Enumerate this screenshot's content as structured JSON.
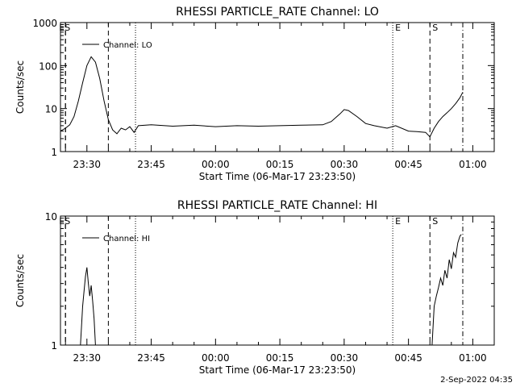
{
  "footer": {
    "date": "2-Sep-2022 04:35"
  },
  "chart_data": [
    {
      "type": "line",
      "title": "RHESSI PARTICLE_RATE Channel: LO",
      "xlabel": "Start Time (06-Mar-17 23:23:50)",
      "ylabel": "Counts/sec",
      "x_unit": "time (HH:MM)",
      "xlim": [
        "23:23:50",
        "01:05:00"
      ],
      "y_scale": "log",
      "ylim": [
        1,
        1000
      ],
      "yticks": [
        "1",
        "10",
        "100",
        "1000"
      ],
      "xticks": [
        "23:30",
        "23:45",
        "00:00",
        "00:15",
        "00:30",
        "00:45",
        "01:00"
      ],
      "legend": {
        "placement": "top-left",
        "entries": [
          "Channel: LO"
        ]
      },
      "markers": [
        {
          "time": "23:25:00",
          "style": "dashed",
          "label": "E"
        },
        {
          "time": "23:25:00",
          "style": "dashed",
          "label": "S"
        },
        {
          "time": "23:35:00",
          "style": "dashed",
          "label": ""
        },
        {
          "time": "23:41:20",
          "style": "dotted",
          "label": ""
        },
        {
          "time": "00:41:20",
          "style": "dotted",
          "label": "E"
        },
        {
          "time": "00:50:00",
          "style": "dashed",
          "label": "S"
        },
        {
          "time": "00:57:40",
          "style": "dashdot",
          "label": ""
        }
      ],
      "series": [
        {
          "x": [
            "23:23:50",
            "23:25:00",
            "23:26:00",
            "23:27:00",
            "23:28:00",
            "23:29:00",
            "23:30:00",
            "23:31:00",
            "23:32:00",
            "23:33:00",
            "23:34:00",
            "23:35:00",
            "23:36:00",
            "23:37:00",
            "23:38:00",
            "23:39:00",
            "23:40:00",
            "23:41:00",
            "23:42:00",
            "23:45:00",
            "23:50:00",
            "23:55:00",
            "00:00:00",
            "00:05:00",
            "00:10:00",
            "00:15:00",
            "00:20:00",
            "00:25:00",
            "00:27:00",
            "00:29:00",
            "00:30:00",
            "00:31:00",
            "00:33:00",
            "00:35:00",
            "00:37:00",
            "00:40:00",
            "00:42:00",
            "00:45:00",
            "00:47:00",
            "00:49:00",
            "00:50:00",
            "00:51:00",
            "00:52:00",
            "00:53:00",
            "00:54:00",
            "00:55:00",
            "00:56:00",
            "00:57:00",
            "00:57:40"
          ],
          "y": [
            3,
            3.5,
            4.2,
            6.5,
            15,
            40,
            100,
            160,
            120,
            50,
            15,
            5.5,
            3.2,
            2.6,
            3.5,
            3.2,
            3.8,
            2.8,
            4,
            4.2,
            3.9,
            4.1,
            3.8,
            4,
            3.9,
            4,
            4.1,
            4.2,
            5,
            7.5,
            9.5,
            9,
            6.5,
            4.5,
            4,
            3.5,
            4,
            3,
            2.9,
            2.8,
            2.2,
            3.5,
            5,
            6.5,
            8,
            10,
            13,
            18,
            24
          ]
        }
      ]
    },
    {
      "type": "line",
      "title": "RHESSI PARTICLE_RATE Channel: HI",
      "xlabel": "Start Time (06-Mar-17 23:23:50)",
      "ylabel": "Counts/sec",
      "x_unit": "time (HH:MM)",
      "xlim": [
        "23:23:50",
        "01:05:00"
      ],
      "y_scale": "log",
      "ylim": [
        1,
        10
      ],
      "yticks": [
        "1",
        "10"
      ],
      "xticks": [
        "23:30",
        "23:45",
        "00:00",
        "00:15",
        "00:30",
        "00:45",
        "01:00"
      ],
      "legend": {
        "placement": "top-left",
        "entries": [
          "Channel: HI"
        ]
      },
      "markers": [
        {
          "time": "23:25:00",
          "style": "dashed",
          "label": "E"
        },
        {
          "time": "23:25:00",
          "style": "dashed",
          "label": "S"
        },
        {
          "time": "23:35:00",
          "style": "dashed",
          "label": ""
        },
        {
          "time": "23:41:20",
          "style": "dotted",
          "label": ""
        },
        {
          "time": "00:41:20",
          "style": "dotted",
          "label": "E"
        },
        {
          "time": "00:50:00",
          "style": "dashed",
          "label": "S"
        },
        {
          "time": "00:57:40",
          "style": "dashdot",
          "label": ""
        }
      ],
      "series": [
        {
          "segments": [
            {
              "x": [
                "23:28:30",
                "23:29:00",
                "23:29:20",
                "23:29:40",
                "23:30:00",
                "23:30:20",
                "23:30:40",
                "23:31:00",
                "23:31:20",
                "23:31:40",
                "23:32:00"
              ],
              "y": [
                1,
                2,
                2.6,
                3.4,
                4,
                3,
                2.4,
                2.9,
                2.2,
                1.6,
                1
              ]
            },
            {
              "x": [
                "00:50:30",
                "00:51:00",
                "00:51:30",
                "00:52:00",
                "00:52:30",
                "00:53:00",
                "00:53:30",
                "00:54:00",
                "00:54:30",
                "00:55:00",
                "00:55:30",
                "00:56:00",
                "00:56:30",
                "00:57:00",
                "00:57:20"
              ],
              "y": [
                1,
                2,
                2.4,
                2.8,
                3.3,
                2.9,
                3.8,
                3.3,
                4.6,
                3.9,
                5.2,
                4.8,
                6.2,
                7,
                7.2
              ]
            }
          ]
        }
      ]
    }
  ]
}
